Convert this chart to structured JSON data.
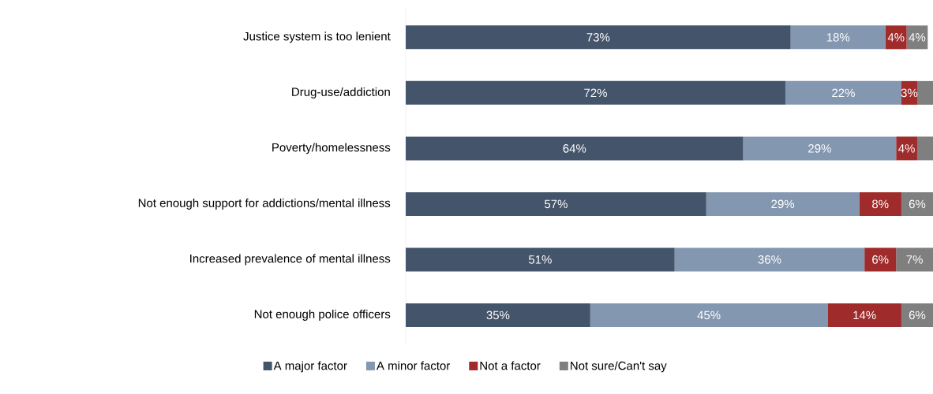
{
  "chart_data": {
    "type": "bar",
    "orientation": "horizontal",
    "stacked": true,
    "categories": [
      "Justice system is too lenient",
      "Drug-use/addiction",
      "Poverty/homelessness",
      "Not enough support for addictions/mental illness",
      "Increased prevalence of mental illness",
      "Not enough police officers"
    ],
    "tick_labels": "y",
    "legend": "bottom",
    "grid": false,
    "series": [
      {
        "name": "A major factor",
        "color": "#44546a",
        "values": [
          73,
          72,
          64,
          57,
          51,
          35
        ],
        "value_labels": [
          "73%",
          "72%",
          "64%",
          "57%",
          "51%",
          "35%"
        ]
      },
      {
        "name": "A minor factor",
        "color": "#8497b0",
        "values": [
          18,
          22,
          29,
          29,
          36,
          45
        ],
        "value_labels": [
          "18%",
          "22%",
          "29%",
          "29%",
          "36%",
          "45%"
        ]
      },
      {
        "name": "Not a factor",
        "color": "#a02b2b",
        "values": [
          4,
          3,
          4,
          8,
          6,
          14
        ],
        "value_labels": [
          "4%",
          "3%",
          "4%",
          "8%",
          "6%",
          "14%"
        ]
      },
      {
        "name": "Not sure/Can't say",
        "color": "#7f7f7f",
        "values": [
          4,
          3,
          3,
          6,
          7,
          6
        ],
        "value_labels": [
          "4%",
          null,
          null,
          "6%",
          "7%",
          "6%"
        ]
      }
    ]
  }
}
